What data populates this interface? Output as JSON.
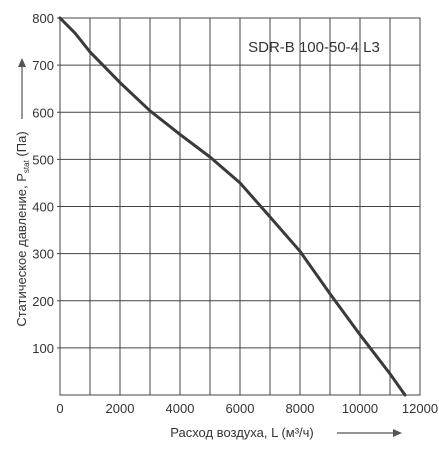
{
  "chart_data": {
    "type": "line",
    "title": "SDR-B 100-50-4 L3",
    "xlabel": "Расход воздуха, L (м³/ч)",
    "ylabel_main": "Статическое давление, P",
    "ylabel_sub": "stat",
    "ylabel_unit": " (Па)",
    "xlim": [
      0,
      12000
    ],
    "ylim": [
      0,
      800
    ],
    "x_ticks": [
      0,
      2000,
      4000,
      6000,
      8000,
      10000,
      12000
    ],
    "x_tick_labels": [
      "0",
      "2000",
      "4000",
      "6000",
      "8000",
      "10000",
      "12000"
    ],
    "y_ticks": [
      100,
      200,
      300,
      400,
      500,
      600,
      700,
      800
    ],
    "y_tick_labels": [
      "100",
      "200",
      "300",
      "400",
      "500",
      "600",
      "700",
      "800"
    ],
    "grid": true,
    "minor_grid_x_step": 1000,
    "legend": "none",
    "series": [
      {
        "color": "#3a3a3a",
        "x": [
          0,
          500,
          1000,
          2000,
          3000,
          4000,
          5000,
          6000,
          7000,
          8000,
          9000,
          10000,
          11000,
          11500
        ],
        "y": [
          800,
          768,
          728,
          663,
          603,
          553,
          505,
          450,
          378,
          305,
          215,
          128,
          45,
          0
        ]
      }
    ]
  }
}
